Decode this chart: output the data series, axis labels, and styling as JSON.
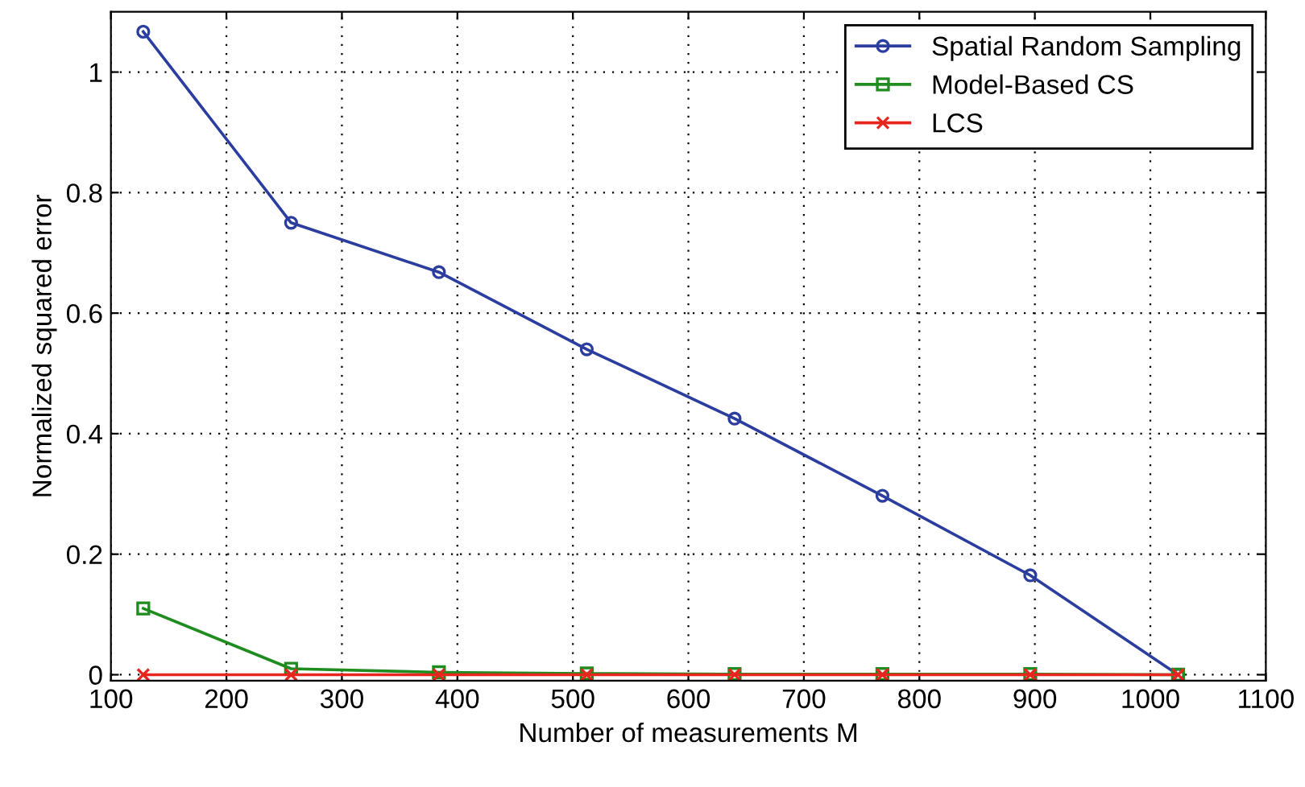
{
  "chart_data": {
    "type": "line",
    "xlabel": "Number of measurements M",
    "ylabel": "Normalized squared error",
    "x": [
      128,
      256,
      384,
      512,
      640,
      768,
      896,
      1024
    ],
    "series": [
      {
        "name": "Spatial Random Sampling",
        "color": "#2b3ea0",
        "marker": "circle",
        "values": [
          1.067,
          0.75,
          0.668,
          0.54,
          0.425,
          0.297,
          0.165,
          0
        ]
      },
      {
        "name": "Model-Based CS",
        "color": "#1f8c1f",
        "marker": "square",
        "values": [
          0.11,
          0.01,
          0.004,
          0.002,
          0.001,
          0.001,
          0.001,
          0
        ]
      },
      {
        "name": "LCS",
        "color": "#e8261e",
        "marker": "cross",
        "values": [
          0,
          0,
          0,
          0,
          0,
          0,
          0,
          0
        ]
      }
    ],
    "xlim": [
      100,
      1100
    ],
    "xticks": [
      100,
      200,
      300,
      400,
      500,
      600,
      700,
      800,
      900,
      1000,
      1100
    ],
    "ylim": [
      -0.01,
      1.1
    ],
    "yticks": [
      0,
      0.2,
      0.4,
      0.6,
      0.8,
      1
    ],
    "grid": true,
    "legend": "top right",
    "line_style": "solid"
  }
}
